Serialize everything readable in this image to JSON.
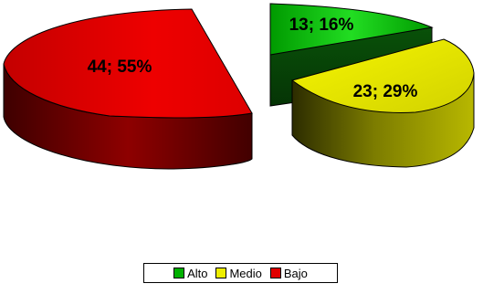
{
  "chart_data": {
    "type": "pie",
    "style": "3d-exploded",
    "categories": [
      "Alto",
      "Medio",
      "Bajo"
    ],
    "values": [
      13,
      23,
      44
    ],
    "percents": [
      16,
      29,
      55
    ],
    "labels": [
      "13; 16%",
      "23; 29%",
      "44; 55%"
    ],
    "colors": [
      "#00b000",
      "#eeee00",
      "#e00000"
    ],
    "legend_position": "bottom",
    "title": ""
  }
}
